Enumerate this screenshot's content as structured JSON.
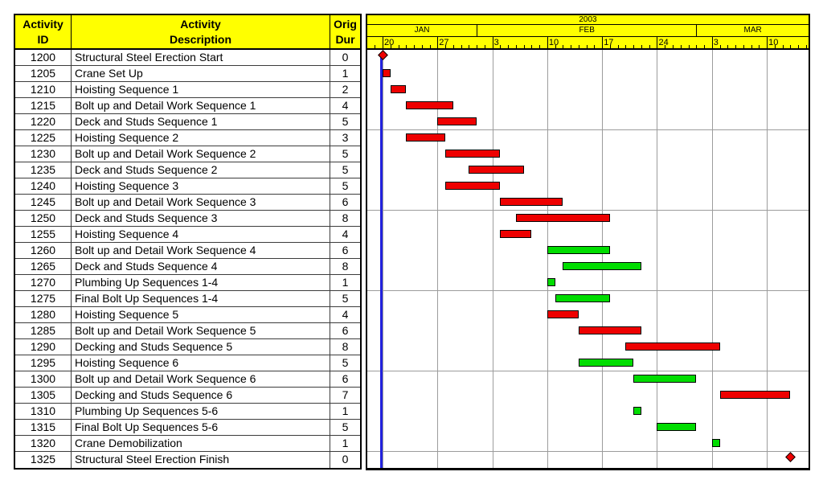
{
  "table": {
    "header": {
      "id": [
        "Activity",
        "ID"
      ],
      "description": [
        "Activity",
        "Description"
      ],
      "dur": [
        "Orig",
        "Dur"
      ]
    }
  },
  "timeline": {
    "year": "2003",
    "months": [
      {
        "label": "JAN",
        "start": -3,
        "end": 12
      },
      {
        "label": "FEB",
        "start": 12,
        "end": 40
      },
      {
        "label": "MAR",
        "start": 40,
        "end": 55
      }
    ],
    "weeks": [
      {
        "label": "20",
        "day": 0
      },
      {
        "label": "27",
        "day": 7
      },
      {
        "label": "3",
        "day": 14
      },
      {
        "label": "10",
        "day": 21
      },
      {
        "label": "17",
        "day": 28
      },
      {
        "label": "24",
        "day": 35
      },
      {
        "label": "3",
        "day": 42
      },
      {
        "label": "10",
        "day": 49
      }
    ]
  },
  "activities": [
    {
      "id": "1200",
      "description": "Structural Steel Erection Start",
      "dur": "0",
      "bar": {
        "type": "diamond",
        "start": 0,
        "end": 0,
        "color": "red"
      }
    },
    {
      "id": "1205",
      "description": "Crane Set Up",
      "dur": "1",
      "bar": {
        "type": "bar",
        "start": 0,
        "end": 0,
        "color": "red"
      }
    },
    {
      "id": "1210",
      "description": "Hoisting Sequence 1",
      "dur": "2",
      "bar": {
        "type": "bar",
        "start": 1,
        "end": 2,
        "color": "red"
      }
    },
    {
      "id": "1215",
      "description": "Bolt up and Detail Work Sequence 1",
      "dur": "4",
      "bar": {
        "type": "bar",
        "start": 3,
        "end": 8,
        "color": "red"
      }
    },
    {
      "id": "1220",
      "description": "Deck and Studs Sequence 1",
      "dur": "5",
      "bar": {
        "type": "bar",
        "start": 7,
        "end": 11,
        "color": "red"
      }
    },
    {
      "id": "1225",
      "description": "Hoisting Sequence 2",
      "dur": "3",
      "bar": {
        "type": "bar",
        "start": 3,
        "end": 7,
        "color": "red"
      }
    },
    {
      "id": "1230",
      "description": "Bolt up and Detail Work Sequence 2",
      "dur": "5",
      "bar": {
        "type": "bar",
        "start": 8,
        "end": 14,
        "color": "red"
      }
    },
    {
      "id": "1235",
      "description": "Deck and Studs Sequence 2",
      "dur": "5",
      "bar": {
        "type": "bar",
        "start": 11,
        "end": 17,
        "color": "red"
      }
    },
    {
      "id": "1240",
      "description": "Hoisting Sequence 3",
      "dur": "5",
      "bar": {
        "type": "bar",
        "start": 8,
        "end": 14,
        "color": "red"
      }
    },
    {
      "id": "1245",
      "description": "Bolt up and Detail Work Sequence 3",
      "dur": "6",
      "bar": {
        "type": "bar",
        "start": 15,
        "end": 22,
        "color": "red"
      }
    },
    {
      "id": "1250",
      "description": "Deck and Studs Sequence 3",
      "dur": "8",
      "bar": {
        "type": "bar",
        "start": 17,
        "end": 28,
        "color": "red"
      }
    },
    {
      "id": "1255",
      "description": "Hoisting Sequence 4",
      "dur": "4",
      "bar": {
        "type": "bar",
        "start": 15,
        "end": 18,
        "color": "red"
      }
    },
    {
      "id": "1260",
      "description": "Bolt up and Detail Work Sequence 4",
      "dur": "6",
      "bar": {
        "type": "bar",
        "start": 21,
        "end": 28,
        "color": "green"
      }
    },
    {
      "id": "1265",
      "description": "Deck and Studs Sequence 4",
      "dur": "8",
      "bar": {
        "type": "bar",
        "start": 23,
        "end": 32,
        "color": "green"
      }
    },
    {
      "id": "1270",
      "description": "Plumbing Up Sequences 1-4",
      "dur": "1",
      "bar": {
        "type": "bar",
        "start": 21,
        "end": 21,
        "color": "green"
      }
    },
    {
      "id": "1275",
      "description": "Final Bolt Up Sequences 1-4",
      "dur": "5",
      "bar": {
        "type": "bar",
        "start": 22,
        "end": 28,
        "color": "green"
      }
    },
    {
      "id": "1280",
      "description": "Hoisting Sequence 5",
      "dur": "4",
      "bar": {
        "type": "bar",
        "start": 21,
        "end": 24,
        "color": "red"
      }
    },
    {
      "id": "1285",
      "description": "Bolt up and Detail Work Sequence 5",
      "dur": "6",
      "bar": {
        "type": "bar",
        "start": 25,
        "end": 32,
        "color": "red"
      }
    },
    {
      "id": "1290",
      "description": "Decking and Studs Sequence 5",
      "dur": "8",
      "bar": {
        "type": "bar",
        "start": 31,
        "end": 42,
        "color": "red"
      }
    },
    {
      "id": "1295",
      "description": "Hoisting Sequence 6",
      "dur": "5",
      "bar": {
        "type": "bar",
        "start": 25,
        "end": 31,
        "color": "green"
      }
    },
    {
      "id": "1300",
      "description": "Bolt up and Detail Work Sequence 6",
      "dur": "6",
      "bar": {
        "type": "bar",
        "start": 32,
        "end": 39,
        "color": "green"
      }
    },
    {
      "id": "1305",
      "description": "Decking and Studs Sequence 6",
      "dur": "7",
      "bar": {
        "type": "bar",
        "start": 43,
        "end": 51,
        "color": "red"
      }
    },
    {
      "id": "1310",
      "description": "Plumbing Up Sequences 5-6",
      "dur": "1",
      "bar": {
        "type": "bar",
        "start": 32,
        "end": 32,
        "color": "green"
      }
    },
    {
      "id": "1315",
      "description": "Final Bolt Up Sequences 5-6",
      "dur": "5",
      "bar": {
        "type": "bar",
        "start": 35,
        "end": 39,
        "color": "green"
      }
    },
    {
      "id": "1320",
      "description": "Crane Demobilization",
      "dur": "1",
      "bar": {
        "type": "bar",
        "start": 42,
        "end": 42,
        "color": "green"
      }
    },
    {
      "id": "1325",
      "description": "Structural Steel Erection Finish",
      "dur": "0",
      "bar": {
        "type": "diamond",
        "start": 52,
        "end": 52,
        "color": "red"
      }
    }
  ],
  "colors": {
    "critical_bar": "#ee0000",
    "normal_bar": "#00dd00",
    "header_bg": "#ffff00",
    "data_date_line": "#2222dd",
    "gridline": "#9c9c9c"
  }
}
